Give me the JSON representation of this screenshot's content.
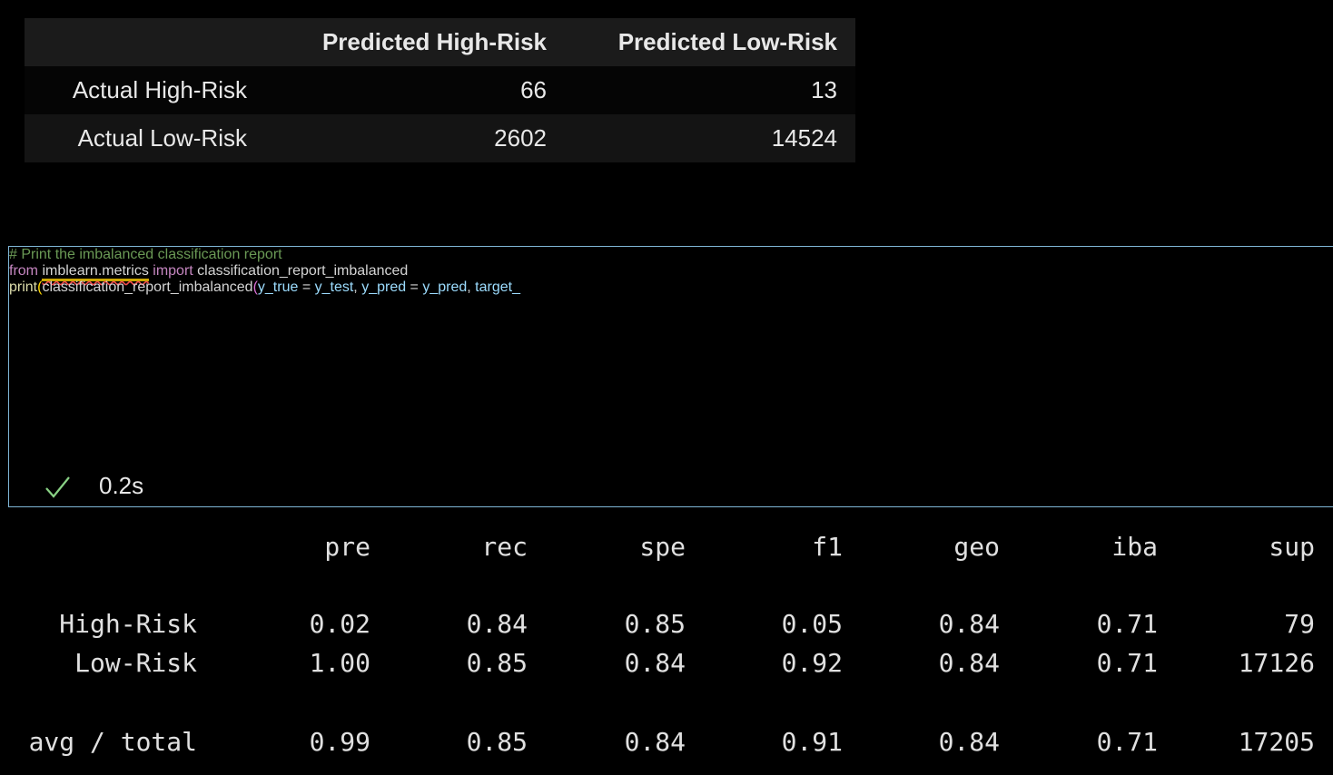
{
  "confusion_table": {
    "columns": [
      "Predicted High-Risk",
      "Predicted Low-Risk"
    ],
    "rows": [
      {
        "label": "Actual High-Risk",
        "values": [
          66,
          13
        ]
      },
      {
        "label": "Actual Low-Risk",
        "values": [
          2602,
          14524
        ]
      }
    ]
  },
  "code_cell": {
    "lines": [
      [
        {
          "text": "# Print the imbalanced classification report",
          "color": "#6a9955"
        }
      ],
      [
        {
          "text": "from ",
          "color": "#c586c0"
        },
        {
          "text": "imblearn.metrics",
          "color": "#d4d4d4",
          "squiggle": true
        },
        {
          "text": " ",
          "color": "#d4d4d4"
        },
        {
          "text": "import ",
          "color": "#c586c0"
        },
        {
          "text": "classification_report_imbalanced",
          "color": "#d4d4d4"
        }
      ],
      [],
      [
        {
          "text": "print",
          "color": "#dcdcaa"
        },
        {
          "text": "(",
          "color": "#ffd700"
        },
        {
          "text": "classification_report_imbalanced",
          "color": "#d4d4d4"
        },
        {
          "text": "(",
          "color": "#da70d6"
        },
        {
          "text": "y_true",
          "color": "#9cdcfe"
        },
        {
          "text": " = ",
          "color": "#d4d4d4"
        },
        {
          "text": "y_test",
          "color": "#9cdcfe"
        },
        {
          "text": ", ",
          "color": "#d4d4d4"
        },
        {
          "text": "y_pred",
          "color": "#9cdcfe"
        },
        {
          "text": " = ",
          "color": "#d4d4d4"
        },
        {
          "text": "y_pred",
          "color": "#9cdcfe"
        },
        {
          "text": ", ",
          "color": "#d4d4d4"
        },
        {
          "text": "target_",
          "color": "#9cdcfe"
        }
      ]
    ],
    "status": {
      "duration": "0.2s"
    }
  },
  "report": {
    "columns": [
      "pre",
      "rec",
      "spe",
      "f1",
      "geo",
      "iba",
      "sup"
    ],
    "rows": [
      {
        "label": "High-Risk",
        "values": [
          "0.02",
          "0.84",
          "0.85",
          "0.05",
          "0.84",
          "0.71",
          "79"
        ]
      },
      {
        "label": "Low-Risk",
        "values": [
          "1.00",
          "0.85",
          "0.84",
          "0.92",
          "0.84",
          "0.71",
          "17126"
        ]
      },
      {
        "label": "avg / total",
        "values": [
          "0.99",
          "0.85",
          "0.84",
          "0.91",
          "0.84",
          "0.71",
          "17205"
        ]
      }
    ]
  }
}
